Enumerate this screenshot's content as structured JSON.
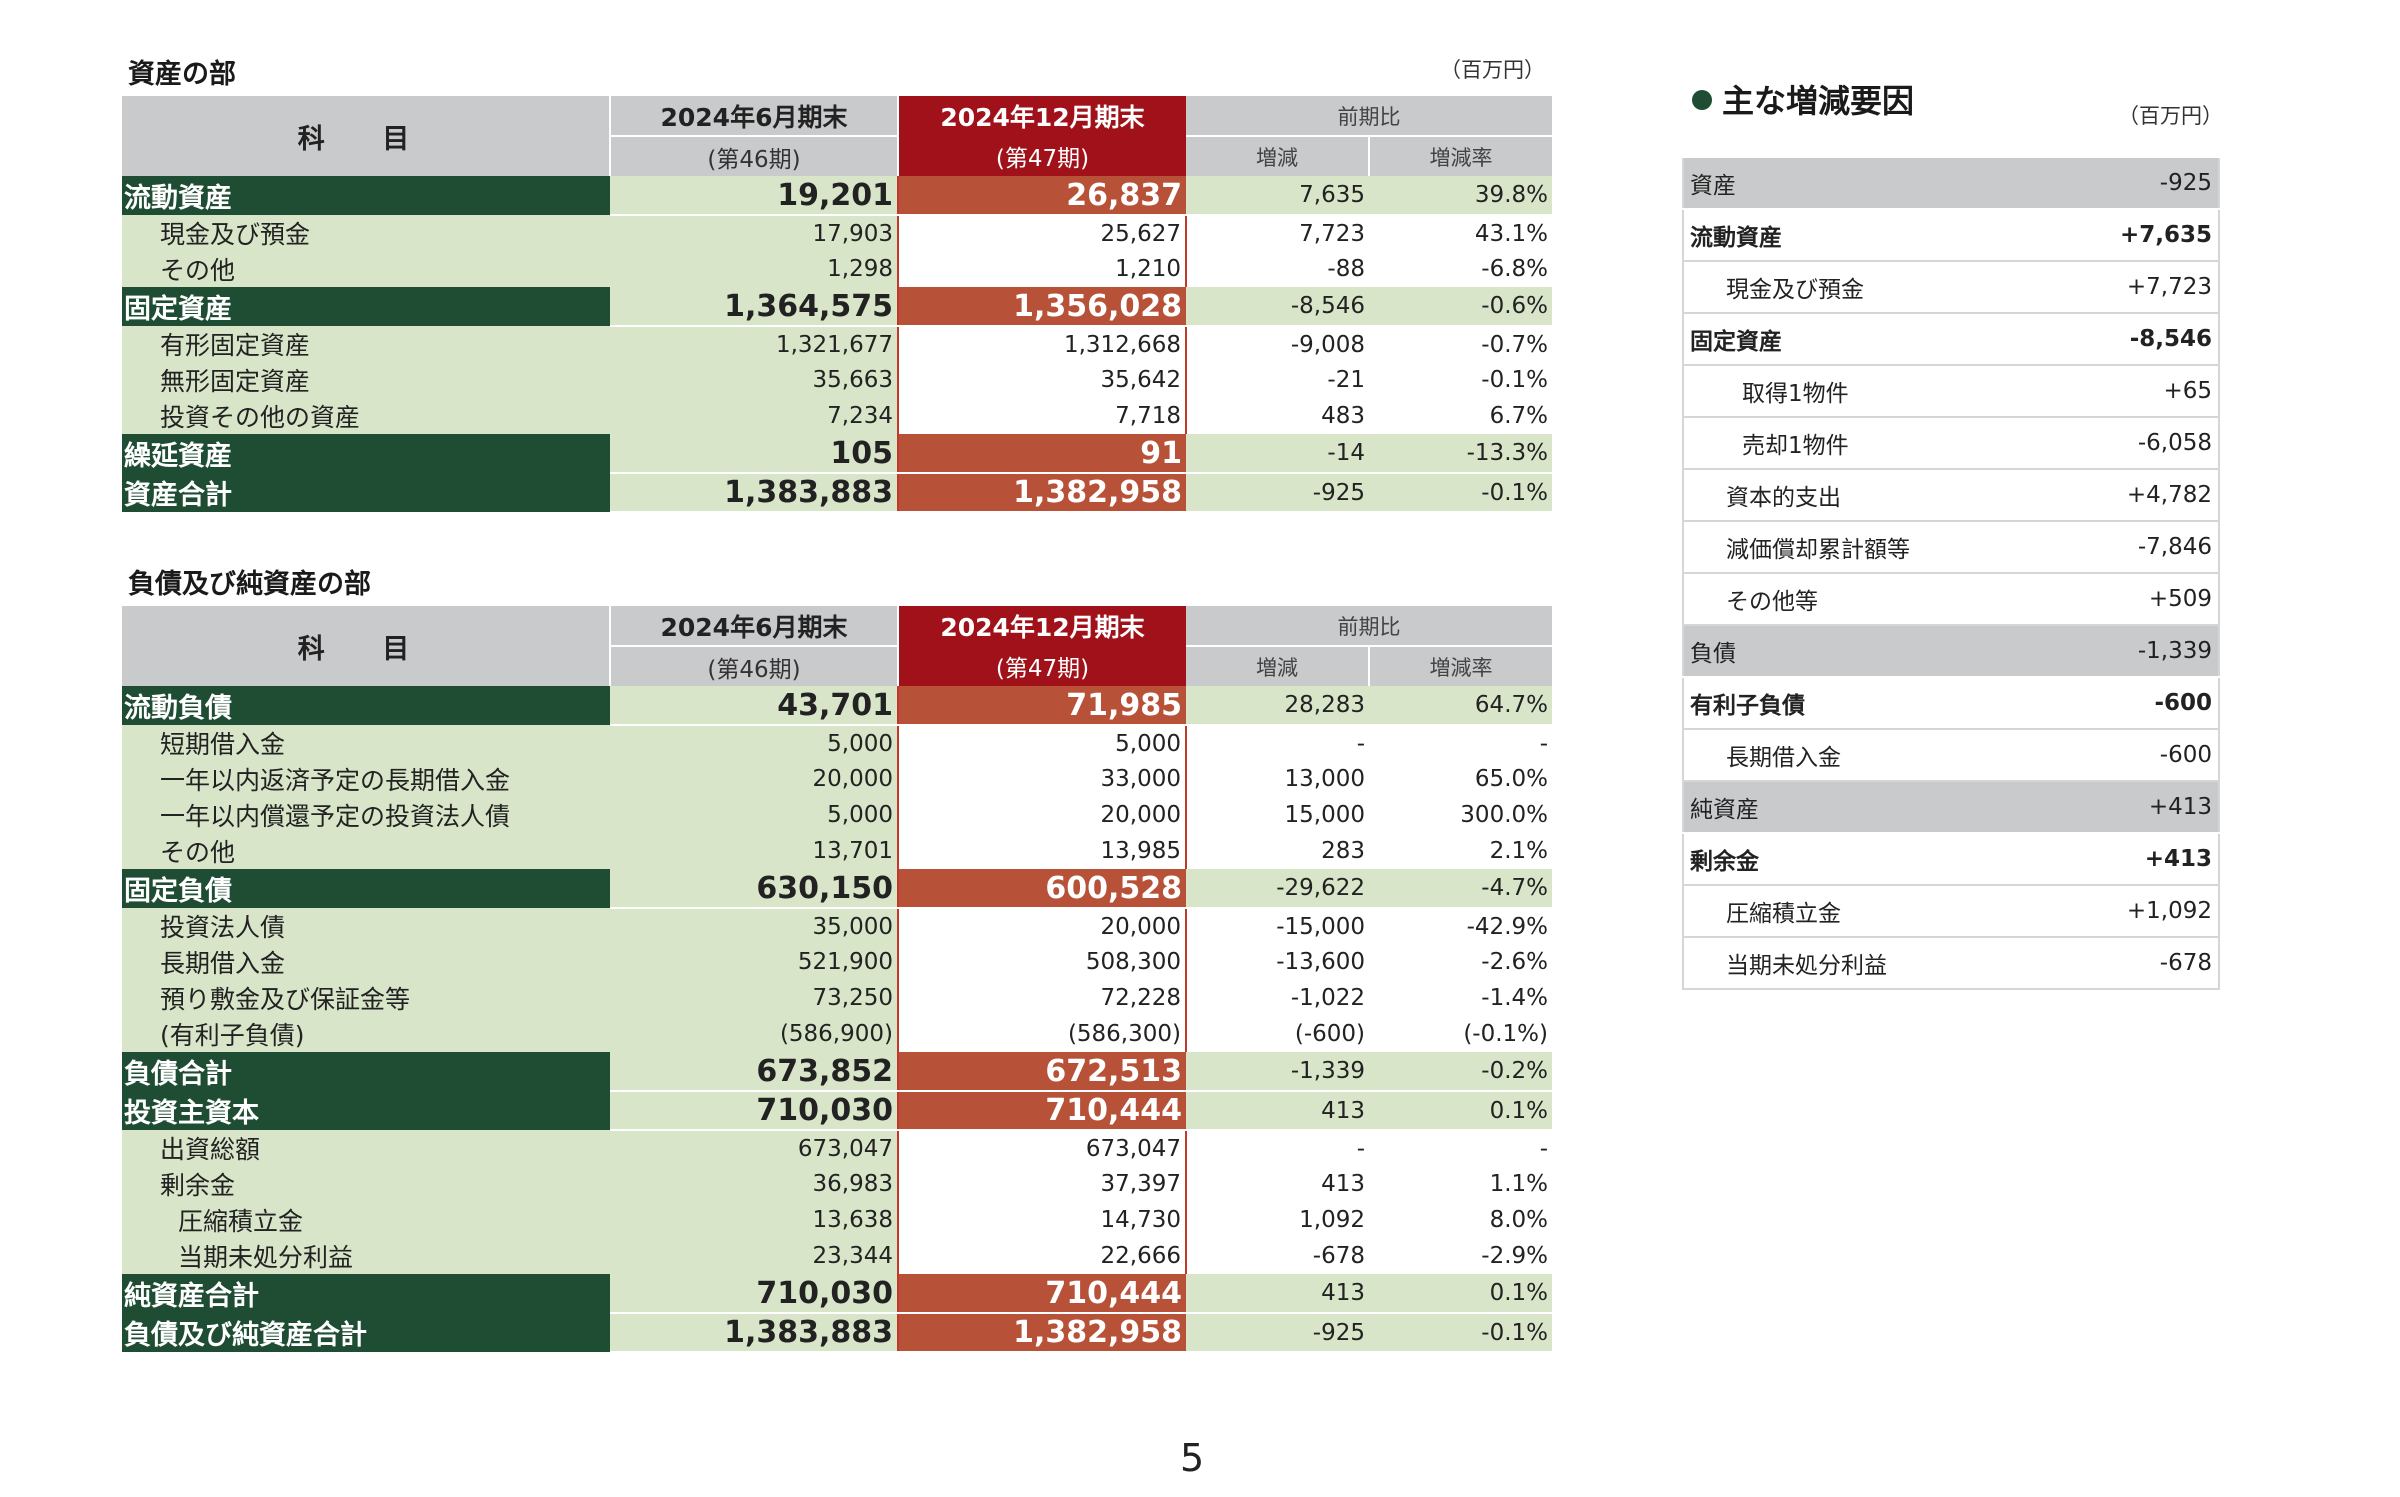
{
  "assets_section": {
    "title": "資産の部",
    "unit": "（百万円）",
    "headers": {
      "subject": "科 目",
      "prev_period": "2024年6月期末",
      "prev_period_no": "(第46期)",
      "cur_period": "2024年12月期末",
      "cur_period_no": "(第47期)",
      "compare": "前期比",
      "change": "増減",
      "change_rate": "増減率"
    },
    "rows": [
      {
        "type": "main",
        "label": "流動資産",
        "prev": "19,201",
        "cur": "26,837",
        "diff": "7,635",
        "rate": "39.8%"
      },
      {
        "type": "sub",
        "label": "現金及び預金",
        "prev": "17,903",
        "cur": "25,627",
        "diff": "7,723",
        "rate": "43.1%"
      },
      {
        "type": "sub",
        "label": "その他",
        "prev": "1,298",
        "cur": "1,210",
        "diff": "-88",
        "rate": "-6.8%"
      },
      {
        "type": "main",
        "label": "固定資産",
        "prev": "1,364,575",
        "cur": "1,356,028",
        "diff": "-8,546",
        "rate": "-0.6%"
      },
      {
        "type": "sub",
        "label": "有形固定資産",
        "prev": "1,321,677",
        "cur": "1,312,668",
        "diff": "-9,008",
        "rate": "-0.7%"
      },
      {
        "type": "sub",
        "label": "無形固定資産",
        "prev": "35,663",
        "cur": "35,642",
        "diff": "-21",
        "rate": "-0.1%"
      },
      {
        "type": "sub",
        "label": "投資その他の資産",
        "prev": "7,234",
        "cur": "7,718",
        "diff": "483",
        "rate": "6.7%"
      },
      {
        "type": "main",
        "label": "繰延資産",
        "prev": "105",
        "cur": "91",
        "diff": "-14",
        "rate": "-13.3%"
      },
      {
        "type": "main",
        "label": "資産合計",
        "prev": "1,383,883",
        "cur": "1,382,958",
        "diff": "-925",
        "rate": "-0.1%"
      }
    ]
  },
  "liab_section": {
    "title": "負債及び純資産の部",
    "headers": {
      "subject": "科 目",
      "prev_period": "2024年6月期末",
      "prev_period_no": "(第46期)",
      "cur_period": "2024年12月期末",
      "cur_period_no": "(第47期)",
      "compare": "前期比",
      "change": "増減",
      "change_rate": "増減率"
    },
    "rows": [
      {
        "type": "main",
        "label": "流動負債",
        "prev": "43,701",
        "cur": "71,985",
        "diff": "28,283",
        "rate": "64.7%"
      },
      {
        "type": "sub",
        "label": "短期借入金",
        "prev": "5,000",
        "cur": "5,000",
        "diff": "-",
        "rate": "-"
      },
      {
        "type": "sub",
        "label": "一年以内返済予定の長期借入金",
        "prev": "20,000",
        "cur": "33,000",
        "diff": "13,000",
        "rate": "65.0%"
      },
      {
        "type": "sub",
        "label": "一年以内償還予定の投資法人債",
        "prev": "5,000",
        "cur": "20,000",
        "diff": "15,000",
        "rate": "300.0%"
      },
      {
        "type": "sub",
        "label": "その他",
        "prev": "13,701",
        "cur": "13,985",
        "diff": "283",
        "rate": "2.1%"
      },
      {
        "type": "main",
        "label": "固定負債",
        "prev": "630,150",
        "cur": "600,528",
        "diff": "-29,622",
        "rate": "-4.7%"
      },
      {
        "type": "sub",
        "label": "投資法人債",
        "prev": "35,000",
        "cur": "20,000",
        "diff": "-15,000",
        "rate": "-42.9%"
      },
      {
        "type": "sub",
        "label": "長期借入金",
        "prev": "521,900",
        "cur": "508,300",
        "diff": "-13,600",
        "rate": "-2.6%"
      },
      {
        "type": "sub",
        "label": "預り敷金及び保証金等",
        "prev": "73,250",
        "cur": "72,228",
        "diff": "-1,022",
        "rate": "-1.4%"
      },
      {
        "type": "sub",
        "label": "(有利子負債)",
        "prev": "(586,900)",
        "cur": "(586,300)",
        "diff": "(-600)",
        "rate": "(-0.1%)"
      },
      {
        "type": "main",
        "label": "負債合計",
        "prev": "673,852",
        "cur": "672,513",
        "diff": "-1,339",
        "rate": "-0.2%"
      },
      {
        "type": "main",
        "label": "投資主資本",
        "prev": "710,030",
        "cur": "710,444",
        "diff": "413",
        "rate": "0.1%"
      },
      {
        "type": "sub",
        "label": "出資総額",
        "prev": "673,047",
        "cur": "673,047",
        "diff": "-",
        "rate": "-"
      },
      {
        "type": "sub",
        "label": "剰余金",
        "prev": "36,983",
        "cur": "37,397",
        "diff": "413",
        "rate": "1.1%"
      },
      {
        "type": "sub2",
        "label": "圧縮積立金",
        "prev": "13,638",
        "cur": "14,730",
        "diff": "1,092",
        "rate": "8.0%"
      },
      {
        "type": "sub2",
        "label": "当期未処分利益",
        "prev": "23,344",
        "cur": "22,666",
        "diff": "-678",
        "rate": "-2.9%"
      },
      {
        "type": "main",
        "label": "純資産合計",
        "prev": "710,030",
        "cur": "710,444",
        "diff": "413",
        "rate": "0.1%"
      },
      {
        "type": "main",
        "label": "負債及び純資産合計",
        "prev": "1,383,883",
        "cur": "1,382,958",
        "diff": "-925",
        "rate": "-0.1%"
      }
    ]
  },
  "factors": {
    "title": "主な増減要因",
    "unit": "（百万円）",
    "rows": [
      {
        "style": "gray",
        "indent": 0,
        "label": "資産",
        "value": "-925"
      },
      {
        "style": "bold",
        "indent": 0,
        "label": "流動資産",
        "value": "+7,635"
      },
      {
        "style": "plain",
        "indent": 1,
        "label": "現金及び預金",
        "value": "+7,723"
      },
      {
        "style": "bold",
        "indent": 0,
        "label": "固定資産",
        "value": "-8,546"
      },
      {
        "style": "plain",
        "indent": 2,
        "label": "取得1物件",
        "value": "+65"
      },
      {
        "style": "plain",
        "indent": 2,
        "label": "売却1物件",
        "value": "-6,058"
      },
      {
        "style": "plain",
        "indent": 1,
        "label": "資本的支出",
        "value": "+4,782"
      },
      {
        "style": "plain",
        "indent": 1,
        "label": "減価償却累計額等",
        "value": "-7,846"
      },
      {
        "style": "plain",
        "indent": 1,
        "label": "その他等",
        "value": "+509"
      },
      {
        "style": "gray",
        "indent": 0,
        "label": "負債",
        "value": "-1,339"
      },
      {
        "style": "bold",
        "indent": 0,
        "label": "有利子負債",
        "value": "-600"
      },
      {
        "style": "plain",
        "indent": 1,
        "label": "長期借入金",
        "value": "-600"
      },
      {
        "style": "gray",
        "indent": 0,
        "label": "純資産",
        "value": "+413"
      },
      {
        "style": "bold",
        "indent": 0,
        "label": "剰余金",
        "value": "+413"
      },
      {
        "style": "plain",
        "indent": 1,
        "label": "圧縮積立金",
        "value": "+1,092"
      },
      {
        "style": "plain",
        "indent": 1,
        "label": "当期未処分利益",
        "value": "-678"
      }
    ]
  },
  "page_number": "5"
}
